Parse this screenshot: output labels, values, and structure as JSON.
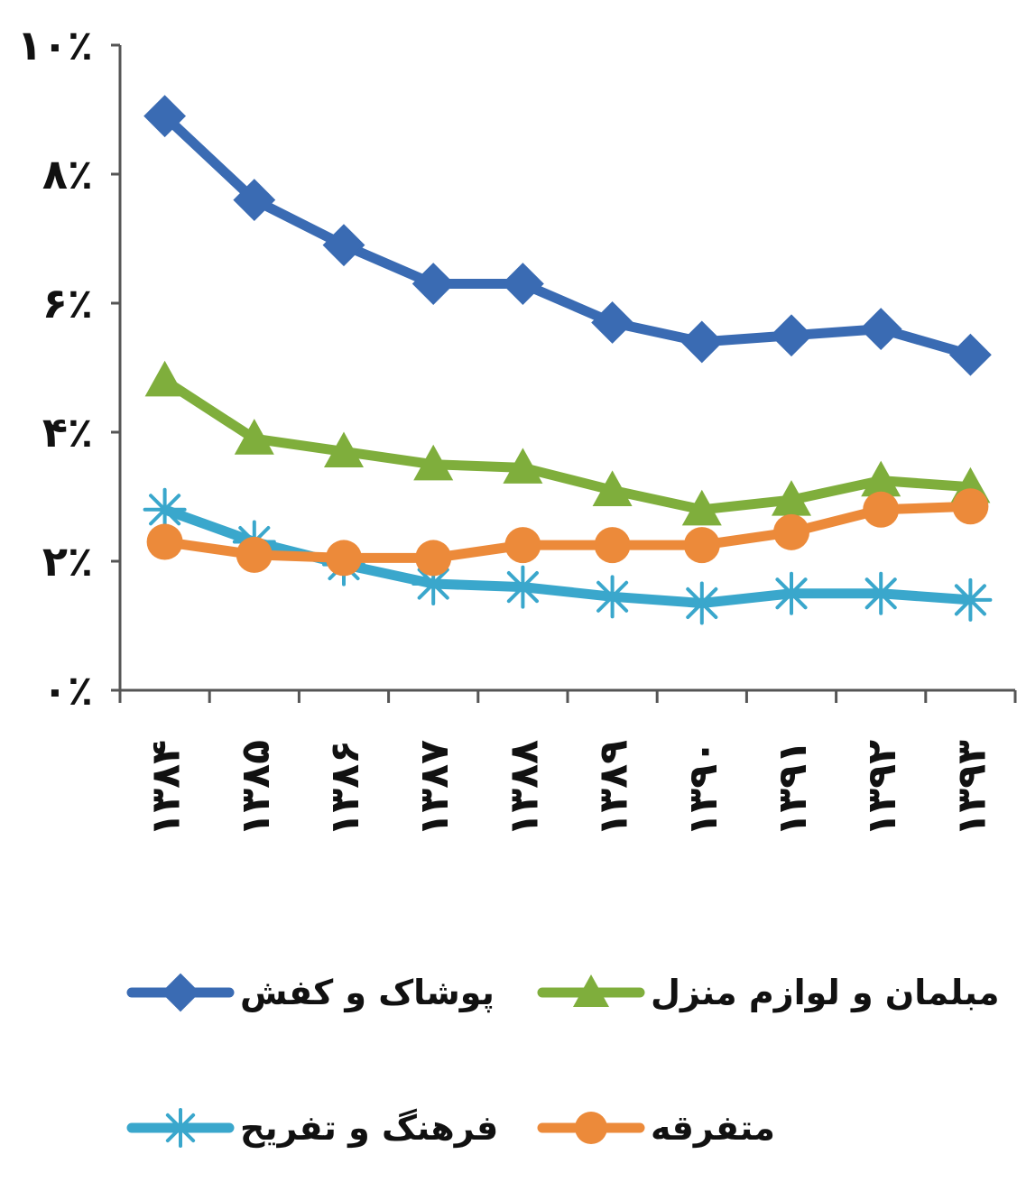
{
  "chart_data": {
    "type": "line",
    "title": "",
    "xlabel": "",
    "ylabel": "",
    "categories": [
      "۱۳۸۴",
      "۱۳۸۵",
      "۱۳۸۶",
      "۱۳۸۷",
      "۱۳۸۸",
      "۱۳۸۹",
      "۱۳۹۰",
      "۱۳۹۱",
      "۱۳۹۲",
      "۱۳۹۳"
    ],
    "ylim": [
      0,
      10
    ],
    "yticks": [
      0,
      2,
      4,
      6,
      8,
      10
    ],
    "ytick_labels": [
      "۰٪",
      "۲٪",
      "۴٪",
      "۶٪",
      "۸٪",
      "۱۰٪"
    ],
    "grid": false,
    "legend_position": "bottom",
    "series": [
      {
        "name": "پوشاک و کفش",
        "color": "#3a6bb3",
        "marker": "diamond",
        "values": [
          8.9,
          7.6,
          6.9,
          6.3,
          6.3,
          5.7,
          5.4,
          5.5,
          5.6,
          5.2
        ]
      },
      {
        "name": "مبلمان و لوازم منزل",
        "color": "#7fae3c",
        "marker": "triangle",
        "values": [
          4.8,
          3.9,
          3.7,
          3.5,
          3.45,
          3.1,
          2.8,
          2.95,
          3.25,
          3.15
        ]
      },
      {
        "name": "فرهنگ و تفریح",
        "color": "#3aa7cc",
        "marker": "asterisk",
        "values": [
          2.8,
          2.3,
          1.95,
          1.65,
          1.6,
          1.45,
          1.35,
          1.5,
          1.5,
          1.4
        ]
      },
      {
        "name": "متفرقه",
        "color": "#ec8a3a",
        "marker": "circle",
        "values": [
          2.3,
          2.1,
          2.05,
          2.05,
          2.25,
          2.25,
          2.25,
          2.45,
          2.8,
          2.85
        ]
      }
    ]
  }
}
